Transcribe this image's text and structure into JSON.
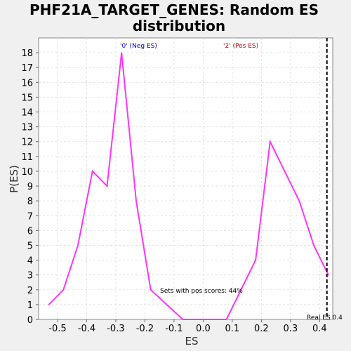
{
  "chart_data": {
    "type": "line",
    "title_line1": "PHF21A_TARGET_GENES: Random ES",
    "title_line2": "distribution",
    "xlabel": "ES",
    "ylabel": "P(ES)",
    "xlim": [
      -0.565,
      0.445
    ],
    "ylim": [
      0,
      19
    ],
    "x_ticks": [
      -0.5,
      -0.4,
      -0.3,
      -0.2,
      -0.1,
      0.0,
      0.1,
      0.2,
      0.3,
      0.4
    ],
    "x_tick_labels": [
      "-0.5",
      "-0.4",
      "-0.3",
      "-0.2",
      "-0.1",
      "0.0",
      "0.1",
      "0.2",
      "0.3",
      "0.4"
    ],
    "y_ticks": [
      0,
      1,
      2,
      3,
      4,
      5,
      6,
      7,
      8,
      9,
      10,
      11,
      12,
      13,
      14,
      15,
      16,
      17,
      18
    ],
    "y_tick_labels": [
      "0",
      "1",
      "2",
      "3",
      "4",
      "5",
      "6",
      "7",
      "8",
      "9",
      "10",
      "11",
      "12",
      "13",
      "14",
      "15",
      "16",
      "17",
      "18"
    ],
    "grid": true,
    "series": [
      {
        "color": "#ff33ff",
        "x": [
          -0.53,
          -0.48,
          -0.43,
          -0.38,
          -0.33,
          -0.28,
          -0.23,
          -0.18,
          -0.07,
          0.08,
          0.18,
          0.23,
          0.28,
          0.33,
          0.38,
          0.43
        ],
        "y": [
          1,
          2,
          5,
          10,
          9,
          18,
          8,
          2,
          0,
          0,
          4,
          12,
          10,
          8,
          5,
          3
        ]
      }
    ],
    "real_es": 0.425,
    "real_es_label": "Real ES 0.4",
    "neg_label": "'0' (Neg ES)",
    "neg_label_color": "#0000cc",
    "pos_label": "'2' (Pos ES)",
    "pos_label_color": "#cc0000",
    "annotation": "Sets with pos scores: 44%"
  }
}
